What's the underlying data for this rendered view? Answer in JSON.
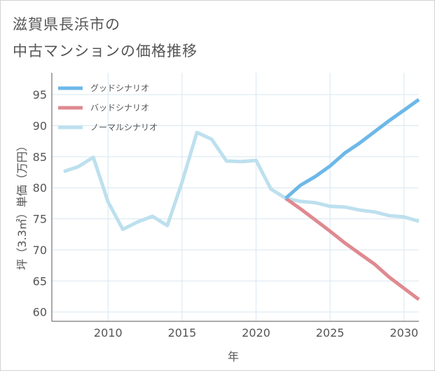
{
  "title": {
    "line1": "滋賀県長浜市の",
    "line2": "中古マンションの価格推移"
  },
  "chart_data": {
    "type": "line",
    "xlabel": "年",
    "ylabel": "坪（3.3㎡）単価（万円）",
    "xlim": [
      2006.2,
      2031
    ],
    "ylim": [
      58.5,
      98.5
    ],
    "xticks": [
      2010,
      2015,
      2020,
      2025,
      2030
    ],
    "yticks": [
      60,
      65,
      70,
      75,
      80,
      85,
      90,
      95
    ],
    "grid": true,
    "legend_position": "top-left",
    "series": [
      {
        "name": "グッドシナリオ",
        "color": "#6cb8e8",
        "x": [
          2022,
          2023,
          2024,
          2025,
          2026,
          2027,
          2028,
          2029,
          2030,
          2031
        ],
        "y": [
          78.3,
          80.4,
          81.8,
          83.5,
          85.6,
          87.2,
          89.0,
          90.8,
          92.5,
          94.2
        ]
      },
      {
        "name": "バッドシナリオ",
        "color": "#de8a90",
        "x": [
          2022,
          2023,
          2024,
          2025,
          2026,
          2027,
          2028,
          2029,
          2030,
          2031
        ],
        "y": [
          78.3,
          76.6,
          74.8,
          73.0,
          71.1,
          69.4,
          67.7,
          65.6,
          63.8,
          62.0
        ]
      },
      {
        "name": "ノーマルシナリオ",
        "color": "#bde0ee",
        "x": [
          2007,
          2008,
          2009,
          2010,
          2011,
          2012,
          2013,
          2014,
          2015,
          2016,
          2017,
          2018,
          2019,
          2020,
          2021,
          2022,
          2023,
          2024,
          2025,
          2026,
          2027,
          2028,
          2029,
          2030,
          2031
        ],
        "y": [
          82.6,
          83.4,
          84.9,
          77.7,
          73.3,
          74.5,
          75.4,
          73.9,
          80.9,
          88.9,
          87.8,
          84.3,
          84.2,
          84.4,
          79.8,
          78.3,
          77.8,
          77.6,
          77.0,
          76.9,
          76.4,
          76.1,
          75.5,
          75.3,
          74.6
        ]
      }
    ]
  }
}
